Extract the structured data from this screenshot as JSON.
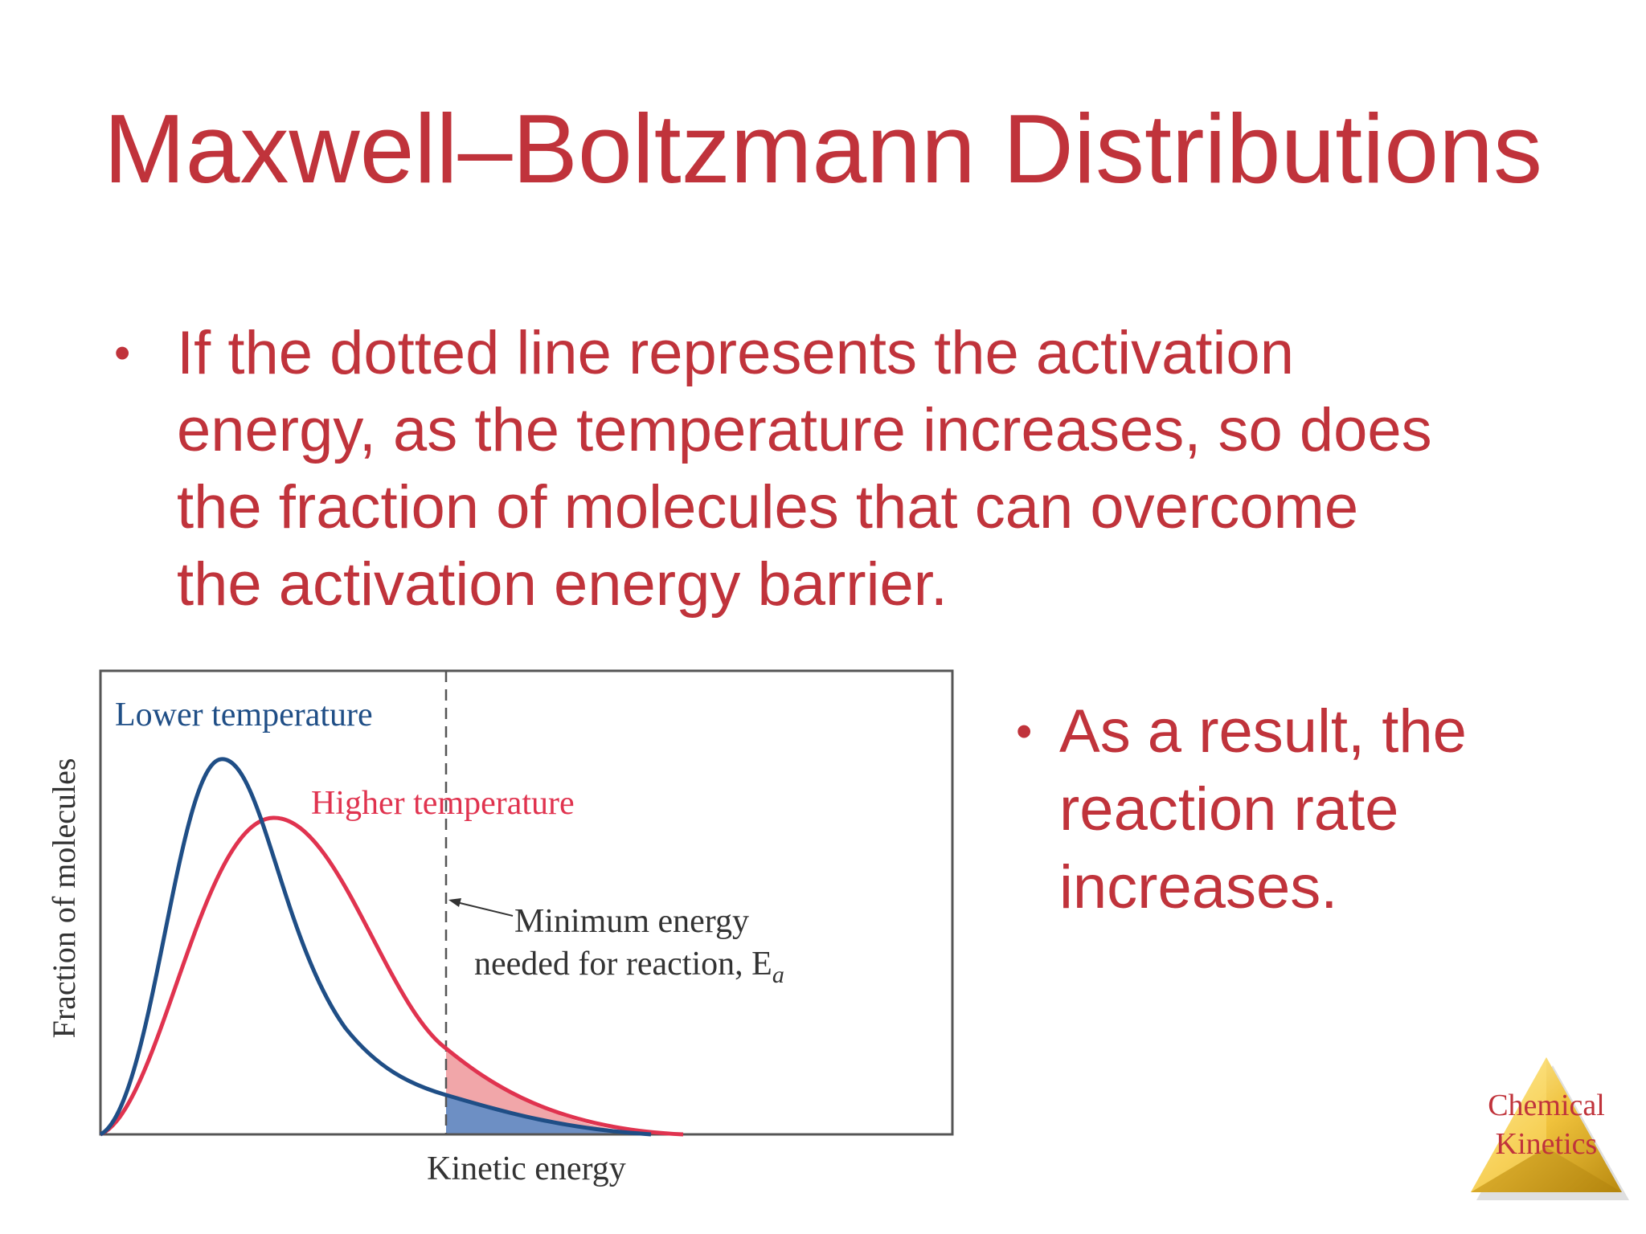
{
  "slide": {
    "title": "Maxwell–Boltzmann Distributions",
    "bullet_symbol": "•",
    "bullet1_lines": [
      "If the dotted line represents the activation",
      "energy, as the temperature increases, so does",
      "the fraction of molecules that can overcome",
      "the activation energy barrier."
    ],
    "bullet2_lines": [
      "As a result, the",
      "reaction rate",
      "increases."
    ]
  },
  "figure": {
    "y_axis_label": "Fraction of molecules",
    "x_axis_label": "Kinetic energy",
    "lower_temperature_label": "Lower temperature",
    "higher_temperature_label": "Higher temperature",
    "annotation_line1": "Minimum energy",
    "annotation_line2": "needed for reaction, E",
    "annotation_subscript": "a",
    "colors": {
      "lower": "#1f4e86",
      "higher": "#e0334f",
      "lower_fill": "#6d8fc4",
      "higher_fill": "#f1a6a9",
      "frame": "#555555"
    }
  },
  "logo": {
    "line1": "Chemical",
    "line2": "Kinetics"
  },
  "colors": {
    "text_red": "#c0333b"
  }
}
